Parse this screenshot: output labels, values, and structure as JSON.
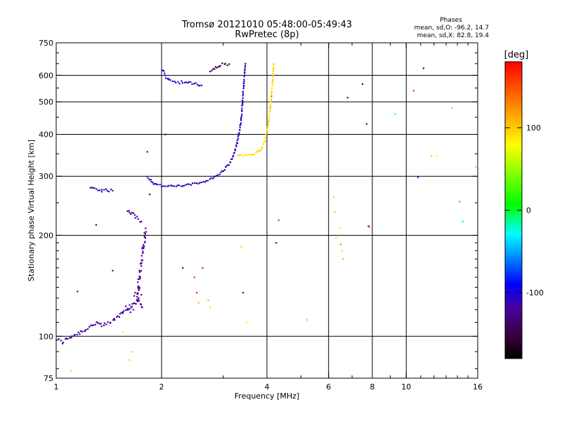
{
  "chart_data": {
    "type": "scatter",
    "title": "Tromsø 20121010 05:48:00-05:49:43",
    "subtitle": "RwPretec (8p)",
    "xlabel": "Frequency [MHz]",
    "ylabel": "Stationary phase Virtual Height [km]",
    "xscale": "log2",
    "yscale": "log",
    "xlim": [
      1,
      16
    ],
    "ylim": [
      75,
      750
    ],
    "grid": true,
    "x_ticks": [
      1,
      2,
      4,
      6,
      8,
      10,
      16
    ],
    "x_tick_labels": [
      "1",
      "2",
      "4",
      "6",
      "8",
      "10",
      "16"
    ],
    "x_minor_ticks": [
      3,
      5,
      7,
      9,
      11,
      12,
      13,
      14,
      15
    ],
    "y_ticks": [
      75,
      100,
      200,
      300,
      400,
      500,
      600,
      750
    ],
    "y_tick_labels": [
      "75",
      "100",
      "200",
      "300",
      "400",
      "500",
      "600",
      "750"
    ],
    "y_minor_ticks": [
      80,
      90,
      110,
      120,
      130,
      140,
      150,
      160,
      170,
      180,
      190,
      250,
      350,
      450,
      550,
      650,
      700
    ],
    "legend": {
      "title": "Phases",
      "line1": "mean, sd,O:  -96.2, 14.7",
      "line2": "mean, sd,X:  82.8, 19.4"
    },
    "colorbar": {
      "label": "[deg]",
      "min": -180,
      "max": 180,
      "ticks": [
        100,
        0,
        -100
      ],
      "tick_labels": [
        "100",
        "0",
        "-100"
      ]
    },
    "traces": [
      {
        "name": "lower-E-ramp",
        "kind": "line",
        "jitter": 0.012,
        "x": [
          1.0,
          1.04,
          1.1,
          1.2,
          1.3,
          1.35,
          1.45,
          1.55,
          1.65,
          1.72,
          1.76
        ],
        "y": [
          98,
          96,
          100,
          104,
          110,
          107,
          111,
          118,
          124,
          128,
          122
        ],
        "phase": -120
      },
      {
        "name": "E-cusp-rise",
        "kind": "line",
        "jitter": 0.02,
        "x": [
          1.7,
          1.72,
          1.74,
          1.76,
          1.77,
          1.78,
          1.79,
          1.8
        ],
        "y": [
          130,
          145,
          160,
          170,
          180,
          190,
          200,
          210
        ],
        "phase": -125
      },
      {
        "name": "E-cluster",
        "kind": "scatter",
        "x": [
          1.55,
          1.6,
          1.62,
          1.65,
          1.66,
          1.7,
          1.72,
          1.75,
          1.68,
          1.73,
          1.58,
          1.63,
          1.67,
          1.71
        ],
        "y": [
          118,
          121,
          124,
          125,
          120,
          128,
          130,
          133,
          135,
          140,
          123,
          118,
          132,
          145
        ],
        "phase": -120
      },
      {
        "name": "Es-low",
        "kind": "line",
        "jitter": 0.008,
        "x": [
          1.25,
          1.3,
          1.35,
          1.4,
          1.45
        ],
        "y": [
          277,
          275,
          274,
          273,
          272
        ],
        "phase": -112
      },
      {
        "name": "Es-mid",
        "kind": "line",
        "jitter": 0.01,
        "x": [
          1.6,
          1.65,
          1.7,
          1.75
        ],
        "y": [
          238,
          232,
          226,
          220
        ],
        "phase": -118
      },
      {
        "name": "F-trace-O",
        "kind": "line",
        "jitter": 0.006,
        "x": [
          1.82,
          1.86,
          1.9,
          1.95,
          2.0,
          2.1,
          2.25,
          2.4,
          2.6,
          2.8,
          2.95,
          3.05,
          3.15,
          3.22,
          3.28,
          3.33,
          3.37,
          3.4,
          3.42,
          3.45,
          3.47
        ],
        "y": [
          300,
          292,
          286,
          283,
          281,
          280,
          281,
          283,
          288,
          296,
          307,
          318,
          332,
          350,
          375,
          405,
          440,
          490,
          540,
          600,
          650
        ],
        "phase": -110
      },
      {
        "name": "F-trace-X",
        "kind": "line",
        "jitter": 0.006,
        "x": [
          3.3,
          3.45,
          3.6,
          3.72,
          3.85,
          3.95,
          4.02,
          4.08,
          4.12,
          4.15,
          4.18
        ],
        "y": [
          348,
          346,
          347,
          352,
          362,
          385,
          420,
          470,
          520,
          580,
          650
        ],
        "phase": 95
      },
      {
        "name": "F2-upper",
        "kind": "line",
        "jitter": 0.01,
        "x": [
          2.0,
          2.05,
          2.1,
          2.2,
          2.35,
          2.5,
          2.6
        ],
        "y": [
          625,
          600,
          580,
          575,
          570,
          565,
          560
        ],
        "phase": -108
      },
      {
        "name": "F2-upper-right",
        "kind": "line",
        "jitter": 0.01,
        "x": [
          2.75,
          2.85,
          2.95,
          3.05,
          3.12
        ],
        "y": [
          620,
          630,
          645,
          650,
          648
        ],
        "phase": -135
      },
      {
        "name": "scatter-misc",
        "kind": "scatter",
        "x": [
          1.1,
          1.15,
          1.3,
          1.35,
          1.45,
          1.55,
          1.62,
          1.65,
          1.82,
          1.85,
          2.05,
          2.3,
          2.48,
          2.52,
          2.55,
          2.62,
          2.72,
          2.75,
          3.38,
          3.42,
          3.5,
          4.12,
          4.25,
          4.32,
          5.2,
          6.2,
          6.25,
          6.3,
          6.45,
          6.5,
          6.55,
          6.6,
          6.8,
          7.5,
          7.7,
          7.8,
          7.85,
          9.3,
          10.5,
          10.8,
          11.2,
          11.8,
          12.2,
          13.5,
          14.2,
          14.5,
          15.8
        ],
        "y": [
          79,
          136,
          215,
          270,
          157,
          103,
          85,
          90,
          355,
          265,
          400,
          160,
          150,
          135,
          126,
          160,
          128,
          122,
          185,
          135,
          110,
          520,
          190,
          222,
          112,
          260,
          235,
          197,
          210,
          188,
          180,
          170,
          515,
          565,
          430,
          213,
          212,
          460,
          540,
          298,
          630,
          345,
          345,
          480,
          252,
          220,
          320
        ],
        "phases": [
          100,
          -110,
          -115,
          -120,
          -115,
          80,
          60,
          45,
          -105,
          -110,
          -108,
          -125,
          160,
          170,
          110,
          175,
          40,
          60,
          95,
          -120,
          80,
          150,
          -115,
          160,
          100,
          95,
          100,
          60,
          90,
          130,
          95,
          110,
          -130,
          -140,
          -130,
          -140,
          140,
          -30,
          160,
          -80,
          -105,
          100,
          80,
          100,
          -40,
          -10,
          110
        ]
      }
    ]
  }
}
